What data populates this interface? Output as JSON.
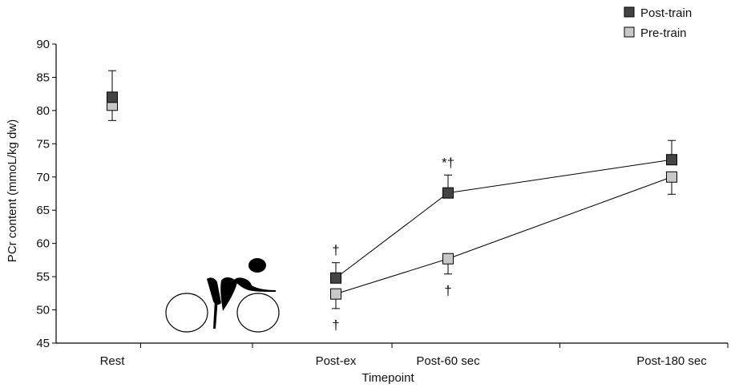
{
  "chart_data": {
    "type": "line",
    "xlabel": "Timepoint",
    "ylabel": "PCr content (mmoL/kg dw)",
    "ylim": [
      45,
      90
    ],
    "yticks": [
      45,
      50,
      55,
      60,
      65,
      70,
      75,
      80,
      85,
      90
    ],
    "grid": false,
    "legend_position": "top-right",
    "categories": [
      "Rest",
      "",
      "Post-ex",
      "Post-60 sec",
      "Post-180 sec"
    ],
    "series": [
      {
        "name": "Post-train",
        "color": "#444444",
        "marker": "square",
        "values": [
          82.0,
          null,
          54.8,
          67.6,
          72.6
        ],
        "error": [
          4.0,
          null,
          2.3,
          2.7,
          2.9
        ]
      },
      {
        "name": "Pre-train",
        "color": "#c8c8c8",
        "marker": "square",
        "values": [
          80.8,
          null,
          52.4,
          57.7,
          70.0
        ],
        "error": [
          2.3,
          null,
          2.2,
          2.3,
          2.6
        ]
      }
    ],
    "line_segments": [
      [
        2,
        3
      ],
      [
        3,
        4
      ]
    ],
    "annotations": [
      {
        "text": "†",
        "category": "Post-ex",
        "series": "Post-train",
        "position": "above"
      },
      {
        "text": "†",
        "category": "Post-ex",
        "series": "Pre-train",
        "position": "below"
      },
      {
        "text": "*†",
        "category": "Post-60 sec",
        "series": "Post-train",
        "position": "above"
      },
      {
        "text": "†",
        "category": "Post-60 sec",
        "series": "Pre-train",
        "position": "below"
      }
    ],
    "illustration": "cyclist-icon"
  }
}
